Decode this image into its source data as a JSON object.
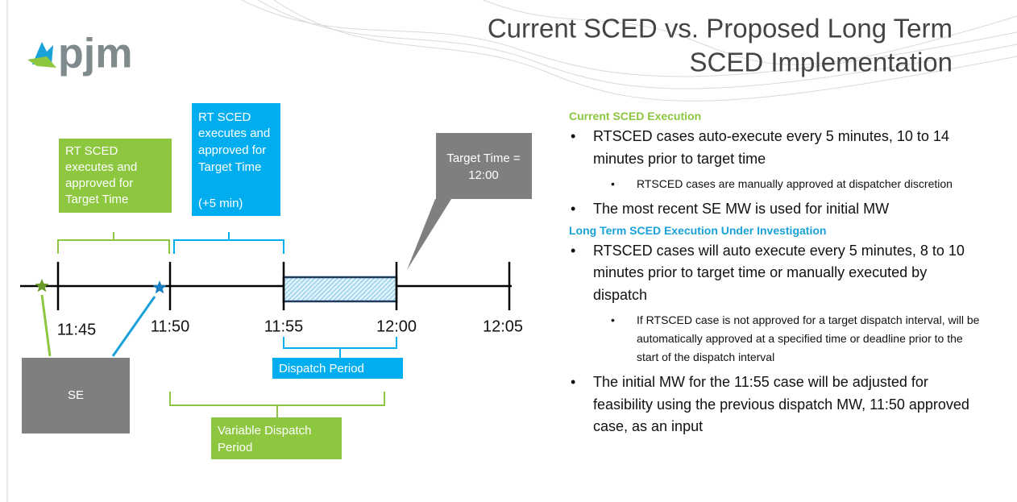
{
  "logo": "pjm",
  "title": [
    "Current SCED vs. Proposed Long Term",
    "SCED Implementation"
  ],
  "diagram": {
    "times": [
      "11:45",
      "11:50",
      "11:55",
      "12:00",
      "12:05"
    ],
    "current_box": [
      "RT SCED",
      "executes and",
      "approved for",
      "Target Time"
    ],
    "long_term_box": [
      "RT SCED",
      "executes and",
      "approved for",
      "Target Time",
      "(+5 min)"
    ],
    "target_callout": [
      "Target Time =",
      "12:00"
    ],
    "se_box": "SE",
    "dispatch_period": "Dispatch Period",
    "variable_dispatch_period": [
      "Variable Dispatch",
      "Period"
    ]
  },
  "sections": [
    {
      "heading": "Current SCED Execution",
      "items": [
        {
          "text": "RTSCED cases auto-execute every 5 minutes, 10 to 14 minutes prior to target time",
          "subitems": [
            "RTSCED cases are manually approved at dispatcher discretion"
          ]
        },
        {
          "text": "The most recent SE MW is used for initial MW",
          "subitems": []
        }
      ]
    },
    {
      "heading": "Long Term SCED Execution Under Investigation",
      "items": [
        {
          "text": "RTSCED cases will auto execute every 5 minutes, 8 to 10 minutes prior to target time or manually executed by dispatch",
          "subitems": [
            "If RTSCED case is not approved for a target dispatch interval, will be automatically approved at a specified time or deadline prior to the start of the dispatch interval"
          ]
        },
        {
          "text": "The initial MW for the 11:55 case will be adjusted for feasibility using the previous dispatch MW, 11:50 approved case, as an input",
          "subitems": []
        }
      ]
    }
  ]
}
